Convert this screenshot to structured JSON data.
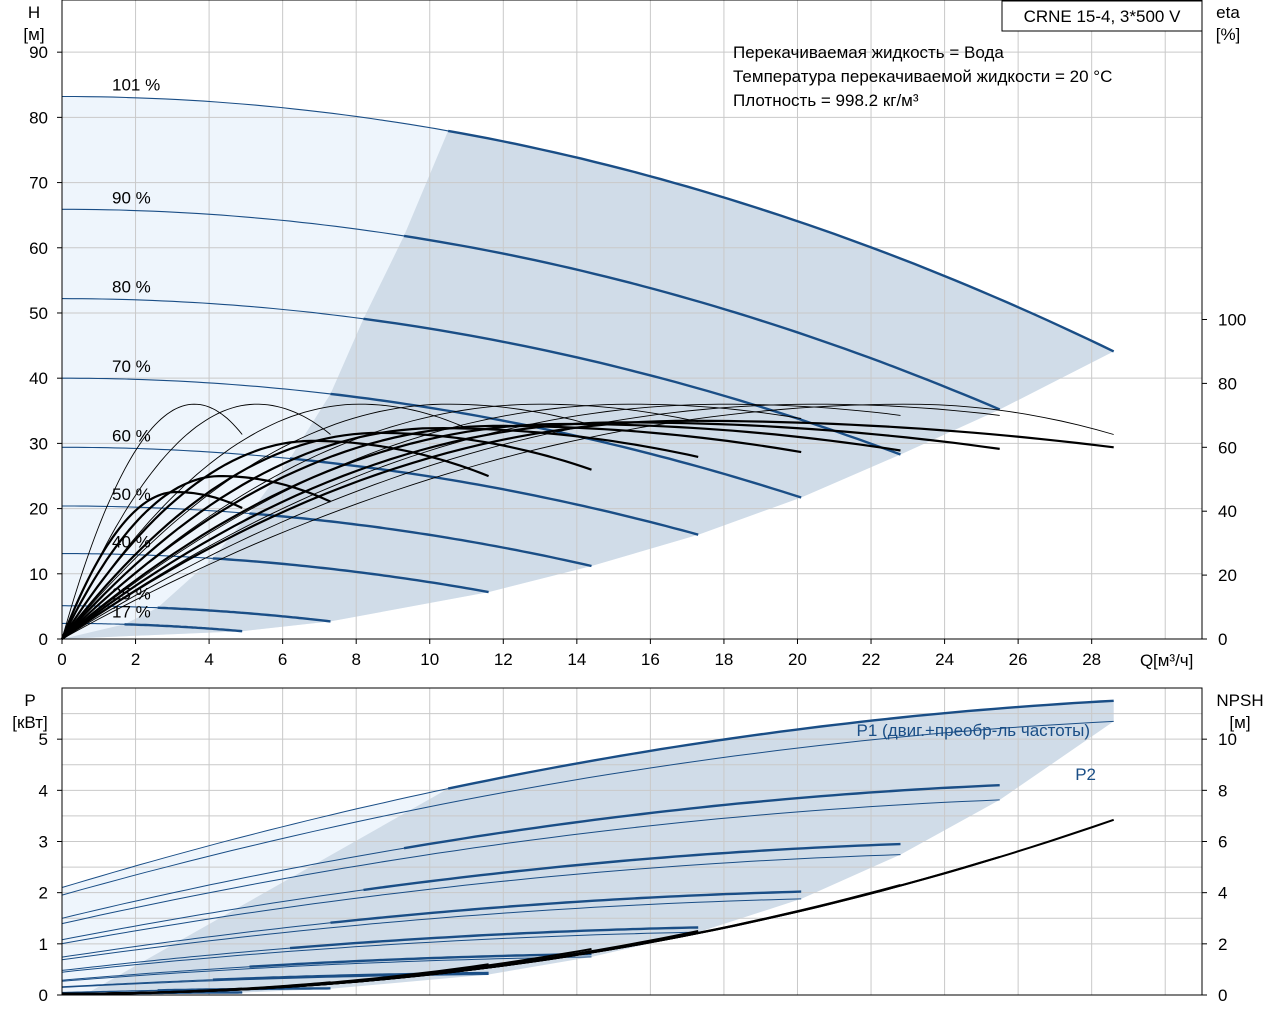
{
  "header": {
    "model": "CRNE 15-4, 3*500 V",
    "liquid": "Перекачиваемая жидкость = Вода",
    "temperature": "Температура перекачиваемой жидкости = 20 °C",
    "density": "Плотность = 998.2 кг/м³"
  },
  "colors": {
    "curve": "#1a4e86",
    "outer_band": "#eef5fc",
    "inner_band": "#d0dce8",
    "eta": "#000000",
    "grid": "#c9c9c9"
  },
  "chart_data": [
    {
      "type": "line",
      "panel": "head",
      "xlabel_symbol": "Q",
      "xlabel_unit": "[м³/ч]",
      "ylabel_left_symbol": "H",
      "ylabel_left_unit": "[м]",
      "ylabel_right_symbol": "eta",
      "ylabel_right_unit": "[%]",
      "xlim": [
        0,
        31
      ],
      "ylim": [
        0,
        98
      ],
      "ylim_right": [
        0,
        200
      ],
      "xticks": [
        0,
        2,
        4,
        6,
        8,
        10,
        12,
        14,
        16,
        18,
        20,
        22,
        24,
        26,
        28
      ],
      "yticks": [
        0,
        10,
        20,
        30,
        40,
        50,
        60,
        70,
        80,
        90
      ],
      "yticks_right": [
        0,
        20,
        40,
        60,
        80,
        100
      ],
      "grid": true,
      "speed_curves": [
        {
          "label": "101 %",
          "shutoff_head": 83.2,
          "qmax": 28.6,
          "end_head": 44.1,
          "band_start_q": 10.5
        },
        {
          "label": "90 %",
          "shutoff_head": 65.9,
          "qmax": 25.5,
          "end_head": 35.2,
          "band_start_q": 9.3
        },
        {
          "label": "80 %",
          "shutoff_head": 52.2,
          "qmax": 22.8,
          "end_head": 28.3,
          "band_start_q": 8.2
        },
        {
          "label": "70 %",
          "shutoff_head": 40.0,
          "qmax": 20.1,
          "end_head": 21.7,
          "band_start_q": 7.3
        },
        {
          "label": "60 %",
          "shutoff_head": 29.4,
          "qmax": 17.3,
          "end_head": 16.0,
          "band_start_q": 6.2
        },
        {
          "label": "50 %",
          "shutoff_head": 20.4,
          "qmax": 14.4,
          "end_head": 11.2,
          "band_start_q": 5.1
        },
        {
          "label": "40 %",
          "shutoff_head": 13.1,
          "qmax": 11.6,
          "end_head": 7.2,
          "band_start_q": 4.1
        },
        {
          "label": "25 %",
          "shutoff_head": 5.1,
          "qmax": 7.3,
          "end_head": 2.7,
          "band_start_q": 2.6
        },
        {
          "label": "17 %",
          "shutoff_head": 2.4,
          "qmax": 4.9,
          "end_head": 1.2,
          "band_start_q": 1.7
        }
      ],
      "efficiency_curves": [
        {
          "speed": "101 %",
          "peak_q": 17.0,
          "peak_eta": 68.3,
          "end_q": 28.6,
          "end_eta": 60.0
        },
        {
          "speed": "90 %",
          "peak_q": 15.2,
          "peak_eta": 67.8,
          "end_q": 25.5,
          "end_eta": 59.5
        },
        {
          "speed": "80 %",
          "peak_q": 13.6,
          "peak_eta": 67.3,
          "end_q": 22.8,
          "end_eta": 59.0
        },
        {
          "speed": "70 %",
          "peak_q": 11.8,
          "peak_eta": 66.7,
          "end_q": 20.1,
          "end_eta": 58.5
        },
        {
          "speed": "60 %",
          "peak_q": 10.2,
          "peak_eta": 66.0,
          "end_q": 17.3,
          "end_eta": 57.0
        },
        {
          "speed": "50 %",
          "peak_q": 8.6,
          "peak_eta": 64.5,
          "end_q": 14.4,
          "end_eta": 53.0
        },
        {
          "speed": "40 %",
          "peak_q": 6.8,
          "peak_eta": 62.0,
          "end_q": 11.6,
          "end_eta": 51.0
        },
        {
          "speed": "25 %",
          "peak_q": 4.3,
          "peak_eta": 51.0,
          "end_q": 7.3,
          "end_eta": 43.0
        },
        {
          "speed": "17 %",
          "peak_q": 3.1,
          "peak_eta": 46.0,
          "end_q": 4.9,
          "end_eta": 41.0
        }
      ],
      "system_curves": [
        {
          "peak_q": 3.6,
          "peak_eta": 73.5,
          "end_q": 4.9,
          "end_eta": 64.0
        },
        {
          "peak_q": 5.3,
          "peak_eta": 73.5,
          "end_q": 7.3,
          "end_eta": 64.0
        },
        {
          "peak_q": 8.1,
          "peak_eta": 73.5,
          "end_q": 11.0,
          "end_eta": 66.0
        },
        {
          "peak_q": 10.5,
          "peak_eta": 73.5,
          "end_q": 14.4,
          "end_eta": 67.0
        },
        {
          "peak_q": 13.0,
          "peak_eta": 73.5,
          "end_q": 17.3,
          "end_eta": 68.0
        },
        {
          "peak_q": 15.5,
          "peak_eta": 73.5,
          "end_q": 20.1,
          "end_eta": 69.0
        },
        {
          "peak_q": 18.0,
          "peak_eta": 73.5,
          "end_q": 22.8,
          "end_eta": 70.0
        },
        {
          "peak_q": 20.5,
          "peak_eta": 73.5,
          "end_q": 25.5,
          "end_eta": 70.0
        },
        {
          "peak_q": 23.0,
          "peak_eta": 73.5,
          "end_q": 28.6,
          "end_eta": 64.0
        }
      ]
    },
    {
      "type": "line",
      "panel": "power",
      "ylabel_left_symbol": "P",
      "ylabel_left_unit": "[кВт]",
      "ylabel_right_symbol": "NPSH",
      "ylabel_right_unit": "[м]",
      "xlim": [
        0,
        31
      ],
      "ylim": [
        0,
        6.0
      ],
      "ylim_right": [
        0,
        12
      ],
      "yticks": [
        0,
        1,
        2,
        3,
        4,
        5
      ],
      "yticks_right": [
        0,
        2,
        4,
        6,
        8,
        10
      ],
      "grid": true,
      "series_labels": {
        "p1": "P1 (двиг.+преобр-ль частоты)",
        "p2": "P2"
      },
      "p1_curves": [
        {
          "speed": "101 %",
          "p0": 2.1,
          "pend": 5.75
        },
        {
          "speed": "90 %",
          "p0": 1.5,
          "pend": 4.1
        },
        {
          "speed": "80 %",
          "p0": 1.08,
          "pend": 2.95
        },
        {
          "speed": "70 %",
          "p0": 0.74,
          "pend": 2.02
        },
        {
          "speed": "60 %",
          "p0": 0.48,
          "pend": 1.32
        },
        {
          "speed": "50 %",
          "p0": 0.29,
          "pend": 0.8
        },
        {
          "speed": "40 %",
          "p0": 0.16,
          "pend": 0.43
        },
        {
          "speed": "25 %",
          "p0": 0.05,
          "pend": 0.13
        },
        {
          "speed": "17 %",
          "p0": 0.02,
          "pend": 0.05
        }
      ],
      "p2_ratio": 0.93,
      "npsh_curves": [
        {
          "speed": "101 %",
          "npsh_end": 6.85
        },
        {
          "speed": "90 %",
          "npsh_end": 5.4
        },
        {
          "speed": "80 %",
          "npsh_end": 4.3
        },
        {
          "speed": "70 %",
          "npsh_end": 3.3
        },
        {
          "speed": "60 %",
          "npsh_end": 2.5
        },
        {
          "speed": "50 %",
          "npsh_end": 1.8
        },
        {
          "speed": "40 %",
          "npsh_end": 1.2
        },
        {
          "speed": "25 %",
          "npsh_end": 0.5
        },
        {
          "speed": "17 %",
          "npsh_end": 0.25
        }
      ]
    }
  ]
}
